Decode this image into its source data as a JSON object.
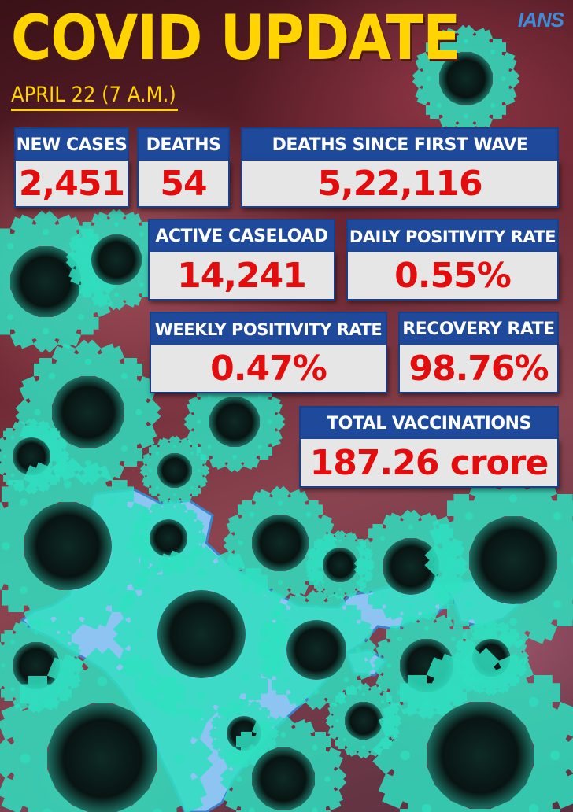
{
  "header": {
    "title": "COVID UPDATE",
    "brand": "IANS",
    "date": "APRIL 22 (7 A.M.)"
  },
  "stats": {
    "new_cases": {
      "label": "NEW CASES",
      "value": "2,451"
    },
    "deaths": {
      "label": "DEATHS",
      "value": "54"
    },
    "deaths_since_first_wave": {
      "label": "DEATHS SINCE FIRST WAVE",
      "value": "5,22,116"
    },
    "active_caseload": {
      "label": "ACTIVE CASELOAD",
      "value": "14,241"
    },
    "daily_positivity_rate": {
      "label": "DAILY POSITIVITY RATE",
      "value": "0.55%"
    },
    "weekly_positivity_rate": {
      "label": "WEEKLY POSITIVITY RATE",
      "value": "0.47%"
    },
    "recovery_rate": {
      "label": "RECOVERY RATE",
      "value": "98.76%"
    },
    "total_vaccinations": {
      "label": "TOTAL VACCINATIONS",
      "value": "187.26 crore"
    }
  },
  "colors": {
    "title": "#ffd400",
    "label_bg": "#1f4a9c",
    "value_bg": "#e6e6e6",
    "value_text": "#e30d0d",
    "map": "#8ec4f2",
    "virus": "#0b1a18",
    "virus_glow": "#2fe0c0"
  },
  "icons": [
    "coronavirus-icon",
    "india-map-icon"
  ]
}
